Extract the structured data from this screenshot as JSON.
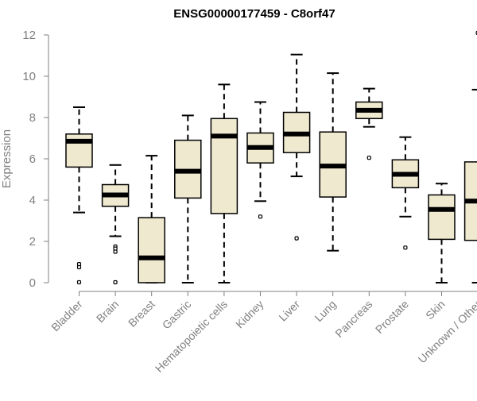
{
  "chart_data": {
    "type": "box",
    "title": "ENSG00000177459 - C8orf47",
    "xlabel": "",
    "ylabel": "Expression",
    "ylim": [
      0,
      12
    ],
    "yticks": [
      0,
      2,
      4,
      6,
      8,
      10,
      12
    ],
    "grid": false,
    "legend": "none",
    "colors": {
      "box_fill": "#efe9d0",
      "stroke": "#000000",
      "axis": "#808080",
      "title": "#000000"
    },
    "categories": [
      "Bladder",
      "Brain",
      "Breast",
      "Gastric",
      "Hematopoietic cells",
      "Kidney",
      "Liver",
      "Lung",
      "Pancreas",
      "Prostate",
      "Skin",
      "Unknown / Other"
    ],
    "boxes": [
      {
        "category": "Bladder",
        "whisker_low": 3.4,
        "q1": 5.6,
        "median": 6.85,
        "q3": 7.2,
        "whisker_high": 8.5,
        "outliers": [
          0.9,
          0.75,
          0.02
        ]
      },
      {
        "category": "Brain",
        "whisker_low": 2.25,
        "q1": 3.7,
        "median": 4.25,
        "q3": 4.75,
        "whisker_high": 5.7,
        "outliers": [
          1.75,
          1.65,
          1.5,
          0.02
        ]
      },
      {
        "category": "Breast",
        "whisker_low": 0.0,
        "q1": 0.0,
        "median": 1.2,
        "q3": 3.15,
        "whisker_high": 6.15,
        "outliers": []
      },
      {
        "category": "Gastric",
        "whisker_low": 0.0,
        "q1": 4.1,
        "median": 5.4,
        "q3": 6.9,
        "whisker_high": 8.1,
        "outliers": []
      },
      {
        "category": "Hematopoietic cells",
        "whisker_low": 0.0,
        "q1": 3.35,
        "median": 7.1,
        "q3": 7.95,
        "whisker_high": 9.6,
        "outliers": []
      },
      {
        "category": "Kidney",
        "whisker_low": 3.95,
        "q1": 5.8,
        "median": 6.55,
        "q3": 7.25,
        "whisker_high": 8.75,
        "outliers": [
          3.2
        ]
      },
      {
        "category": "Liver",
        "whisker_low": 5.15,
        "q1": 6.3,
        "median": 7.2,
        "q3": 8.25,
        "whisker_high": 11.05,
        "outliers": [
          2.15
        ]
      },
      {
        "category": "Lung",
        "whisker_low": 1.55,
        "q1": 4.15,
        "median": 5.65,
        "q3": 7.3,
        "whisker_high": 10.15,
        "outliers": []
      },
      {
        "category": "Pancreas",
        "whisker_low": 7.55,
        "q1": 7.95,
        "median": 8.35,
        "q3": 8.75,
        "whisker_high": 9.4,
        "outliers": [
          6.05
        ]
      },
      {
        "category": "Prostate",
        "whisker_low": 3.2,
        "q1": 4.6,
        "median": 5.25,
        "q3": 5.95,
        "whisker_high": 7.05,
        "outliers": [
          1.7
        ]
      },
      {
        "category": "Skin",
        "whisker_low": 0.0,
        "q1": 2.1,
        "median": 3.55,
        "q3": 4.25,
        "whisker_high": 4.8,
        "outliers": []
      },
      {
        "category": "Unknown / Other",
        "whisker_low": 0.0,
        "q1": 2.05,
        "median": 3.95,
        "q3": 5.85,
        "whisker_high": 9.35,
        "outliers": [
          12.1
        ]
      }
    ]
  }
}
